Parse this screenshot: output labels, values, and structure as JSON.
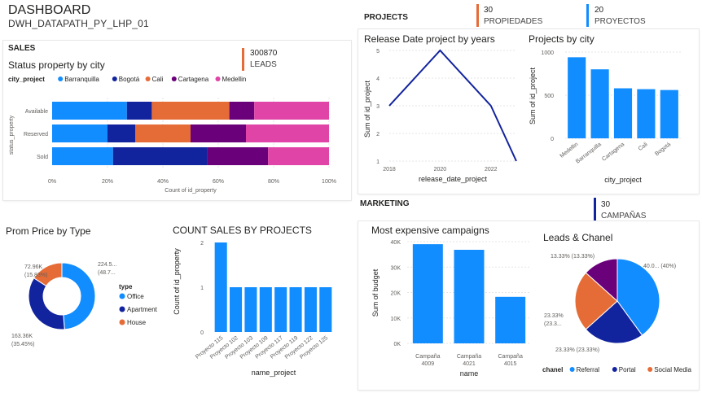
{
  "header": {
    "title": "DASHBOARD",
    "subtitle": "DWH_DATAPATH_PY_LHP_01"
  },
  "sales": {
    "section": "SALES",
    "kpi": {
      "value": "300870",
      "label": "LEADS",
      "color": "#E66C37"
    },
    "status_title": "Status property by city",
    "prom_title": "Prom Price by Type",
    "count_title": "COUNT SALES BY PROJECTS"
  },
  "projects": {
    "section": "PROJECTS",
    "kpis": [
      {
        "value": "30",
        "label": "PROPIEDADES",
        "color": "#E66C37"
      },
      {
        "value": "20",
        "label": "PROYECTOS",
        "color": "#118DFF"
      }
    ],
    "release_title": "Release Date project by years",
    "city_title": "Projects by city"
  },
  "marketing": {
    "section": "MARKETING",
    "kpi": {
      "value": "30",
      "label": "CAMPAÑAS",
      "color": "#12239E"
    },
    "campaigns_title": "Most expensive campaigns",
    "leads_title": "Leads & Chanel"
  },
  "colors": {
    "Barranquilla": "#118DFF",
    "Bogotá": "#12239E",
    "Cali": "#E66C37",
    "Cartagena": "#6B007B",
    "Medellin": "#E044A7"
  },
  "chart_data": [
    {
      "id": "status",
      "type": "bar",
      "orientation": "horizontal-stacked-100",
      "legend_title": "city_project",
      "categories": [
        "Available",
        "Reserved",
        "Sold"
      ],
      "series": [
        {
          "name": "Barranquilla",
          "values": [
            27,
            20,
            22
          ]
        },
        {
          "name": "Bogotá",
          "values": [
            9,
            10,
            34
          ]
        },
        {
          "name": "Cali",
          "values": [
            28,
            20,
            0
          ]
        },
        {
          "name": "Cartagena",
          "values": [
            9,
            20,
            22
          ]
        },
        {
          "name": "Medellin",
          "values": [
            27,
            30,
            22
          ]
        }
      ],
      "xticks": [
        "0%",
        "20%",
        "40%",
        "60%",
        "80%",
        "100%"
      ],
      "xlabel": "Count of id_property",
      "ylabel": "status_property"
    },
    {
      "id": "release",
      "type": "line",
      "x": [
        2018,
        2020,
        2022,
        2023
      ],
      "values": [
        3,
        5,
        3,
        1
      ],
      "xticks": [
        "2018",
        "2020",
        "2022"
      ],
      "yticks": [
        "1",
        "2",
        "3",
        "4",
        "5"
      ],
      "xlabel": "release_date_project",
      "ylabel": "Sum of id_project",
      "color": "#12239E"
    },
    {
      "id": "city",
      "type": "bar",
      "categories": [
        "Medellin",
        "Barranquilla",
        "Cartagena",
        "Cali",
        "Bogotá"
      ],
      "values": [
        940,
        800,
        580,
        570,
        560
      ],
      "yticks": [
        "0",
        "500",
        "1000"
      ],
      "ylim": [
        0,
        1000
      ],
      "xlabel": "city_project",
      "ylabel": "Sum of id_project",
      "color": "#118DFF"
    },
    {
      "id": "prom",
      "type": "pie",
      "style": "donut",
      "legend_title": "type",
      "slices": [
        {
          "name": "Office",
          "value": 224.5,
          "label1": "224.5...",
          "label2": "(48.7...",
          "color": "#118DFF"
        },
        {
          "name": "Apartment",
          "value": 163.36,
          "label1": "163.36K",
          "label2": "(35.45%)",
          "color": "#12239E"
        },
        {
          "name": "House",
          "value": 72.96,
          "label1": "72.96K",
          "label2": "(15.83%)",
          "color": "#E66C37"
        }
      ]
    },
    {
      "id": "count",
      "type": "bar",
      "categories": [
        "Proyecto 115",
        "Proyecto 102",
        "Proyecto 103",
        "Proyecto 109",
        "Proyecto 117",
        "Proyecto 119",
        "Proyecto 122",
        "Proyecto 125"
      ],
      "values": [
        2,
        1,
        1,
        1,
        1,
        1,
        1,
        1
      ],
      "yticks": [
        "0",
        "1",
        "2"
      ],
      "ylim": [
        0,
        2
      ],
      "xlabel": "name_project",
      "ylabel": "Count of id_property",
      "color": "#118DFF"
    },
    {
      "id": "campaigns",
      "type": "bar",
      "categories": [
        "Campaña 4009",
        "Campaña 4021",
        "Campaña 4015"
      ],
      "values": [
        39000,
        36800,
        18300
      ],
      "yticks": [
        "0K",
        "10K",
        "20K",
        "30K",
        "40K"
      ],
      "ylim": [
        0,
        40000
      ],
      "xlabel": "name",
      "ylabel": "Sum of budget",
      "color": "#118DFF"
    },
    {
      "id": "leads",
      "type": "pie",
      "legend_title": "chanel",
      "slices": [
        {
          "name": "Referral",
          "value": 40,
          "label": "40.0... (40%)",
          "color": "#118DFF"
        },
        {
          "name": "Portal",
          "value": 23.33,
          "label": "23.33% (23.33%)",
          "color": "#12239E"
        },
        {
          "name": "Social Media",
          "value": 23.33,
          "label": "23.33% (23.3...",
          "color": "#E66C37"
        },
        {
          "name": "",
          "value": 13.33,
          "label": "13.33% (13.33%)",
          "color": "#6B007B"
        }
      ]
    }
  ]
}
